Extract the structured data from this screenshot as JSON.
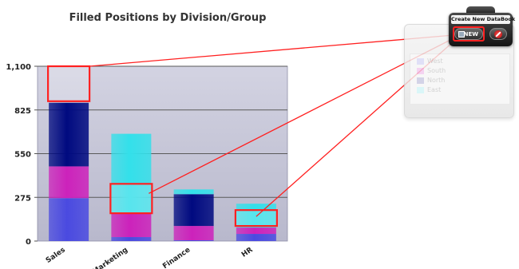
{
  "chart_data": {
    "type": "bar",
    "stacked": true,
    "title": "Filled Positions by Division/Group",
    "categories": [
      "Sales",
      "Marketing",
      "Finance",
      "HR"
    ],
    "yticks": [
      "0",
      "275",
      "550",
      "825",
      "1,100"
    ],
    "ylim": [
      0,
      1100
    ],
    "grid": true,
    "series": [
      {
        "color": "#4a4ae0",
        "values": [
          270,
          25,
          5,
          45
        ]
      },
      {
        "color": "#cc22bb",
        "values": [
          200,
          150,
          90,
          40
        ]
      },
      {
        "color": "#000a80",
        "values": [
          400,
          0,
          200,
          0
        ]
      },
      {
        "color": "#33e0ea",
        "values": [
          0,
          500,
          30,
          150
        ]
      }
    ],
    "highlights": [
      {
        "category": "Sales",
        "from": 880,
        "to": 1100
      },
      {
        "category": "Marketing",
        "from": 175,
        "to": 360
      },
      {
        "category": "HR",
        "from": 95,
        "to": 195
      }
    ]
  },
  "databook": {
    "title": "Create New DataBook",
    "new_label": "NEW",
    "delete_icon": "delete-icon"
  },
  "ghost_panel": {
    "legend": [
      {
        "label": "West",
        "color": "#d9d9f6"
      },
      {
        "label": "South",
        "color": "#f2c9ee"
      },
      {
        "label": "North",
        "color": "#c9c9e2"
      },
      {
        "label": "East",
        "color": "#d1f4f7"
      }
    ]
  },
  "colors": {
    "highlight": "#ff2020",
    "plot_bg": "#c2c2d6"
  }
}
